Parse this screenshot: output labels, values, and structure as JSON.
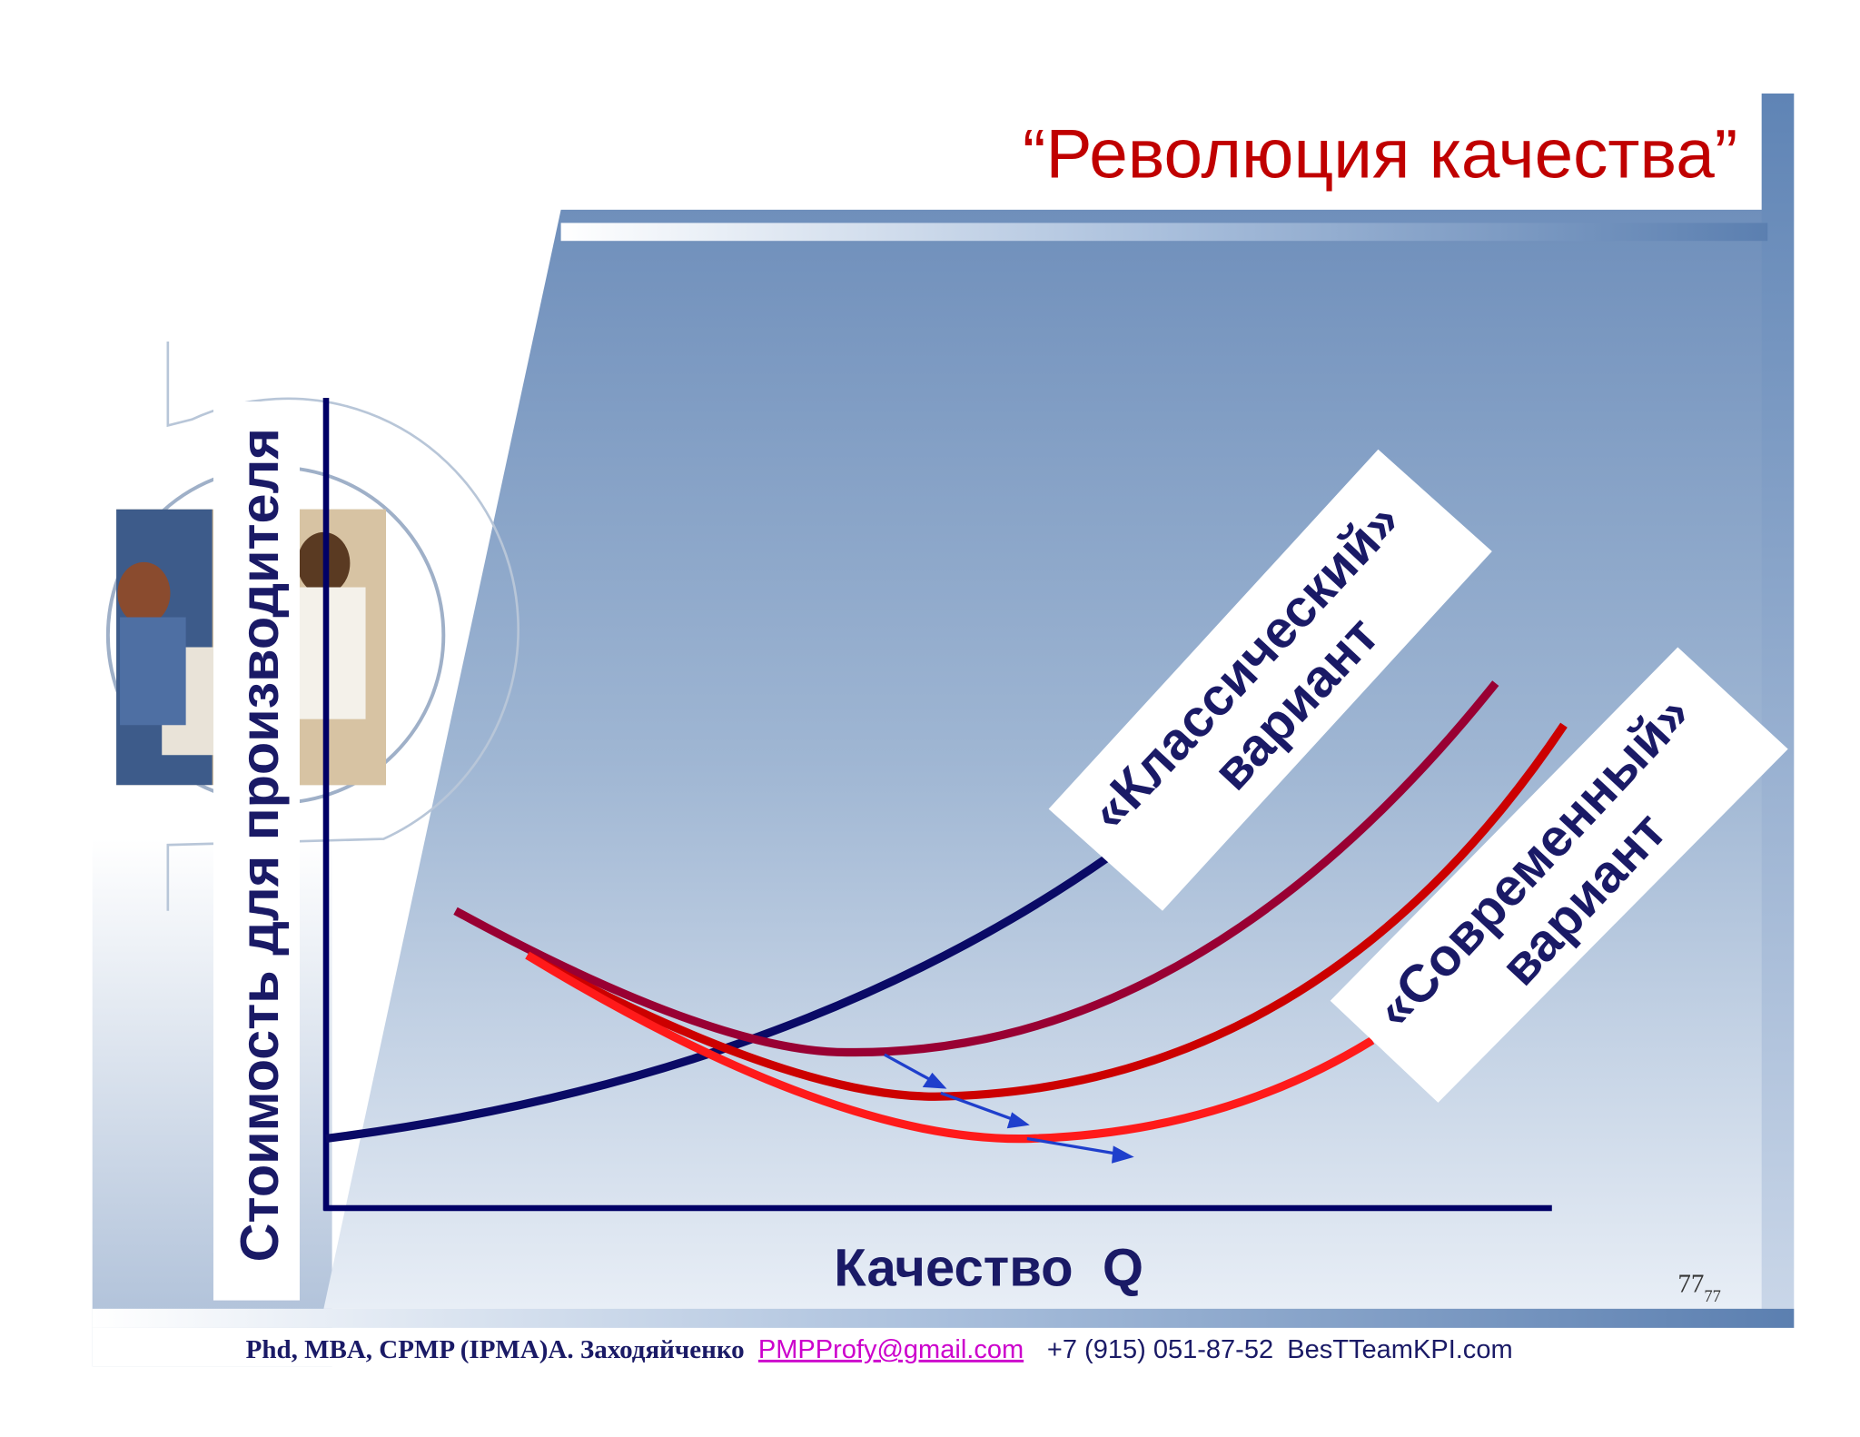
{
  "title": "“Революция качества”",
  "y_axis_label": "Стоимость для производителя",
  "x_axis_label": "Качество  Q",
  "labels": [
    {
      "line1": "«Классический»",
      "line2": "вариант"
    },
    {
      "line1": "«Современный»",
      "line2": "вариант"
    }
  ],
  "page_number": "77",
  "page_number_sub": "77",
  "footer": {
    "author": "Phd, MBA, CPMP (IPMA)А. Заходяйченко",
    "email": "PMPProfy@gmail.com",
    "phone": "+7 (915) 051-87-52",
    "site": "BesTTeamKPI.com"
  }
}
